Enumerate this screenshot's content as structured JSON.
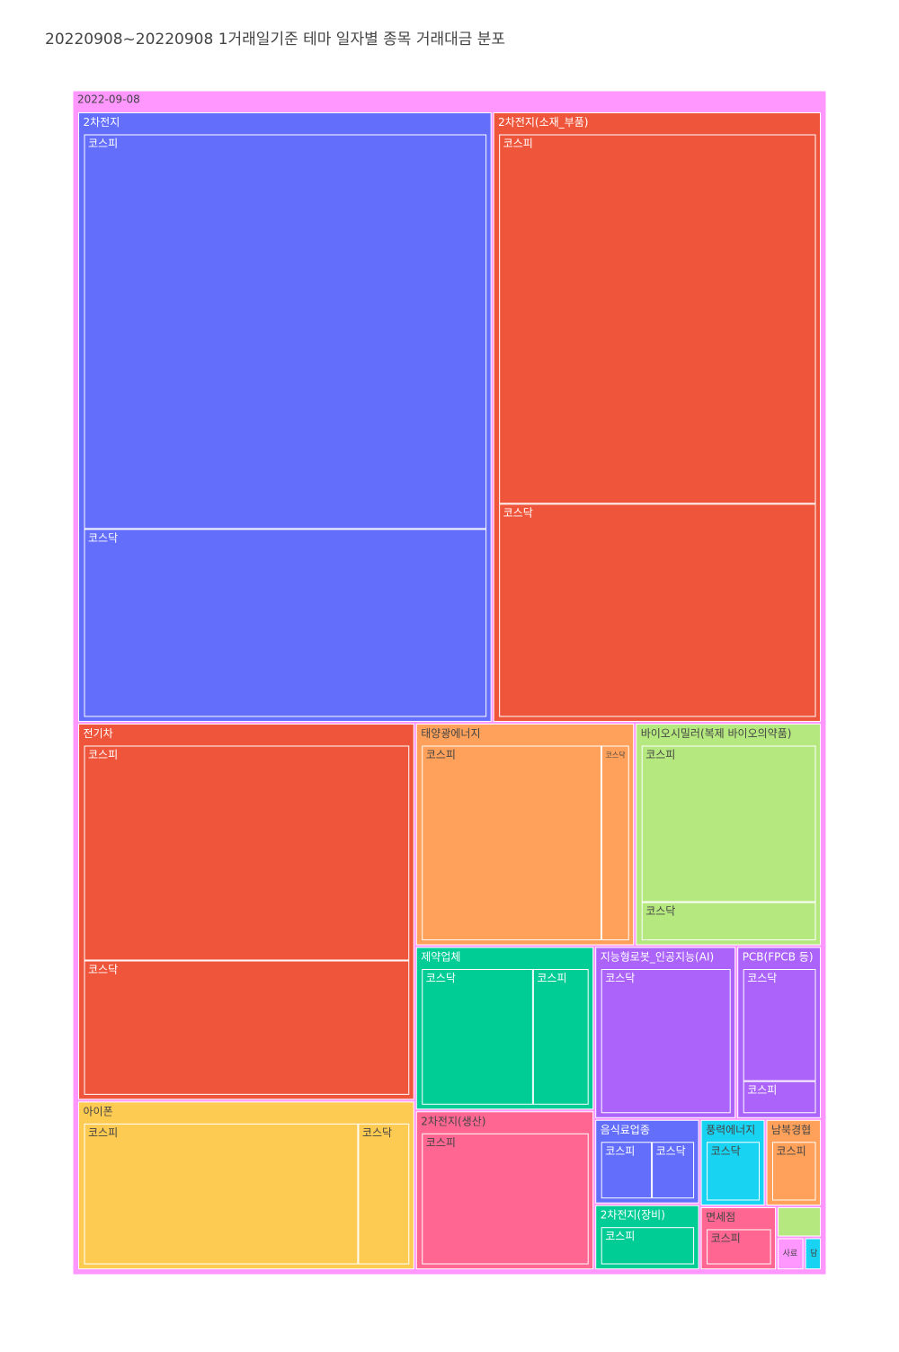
{
  "chart_data": {
    "type": "treemap",
    "title": "20220908~20220908 1거래일기준 테마 일자별 종목 거래대금 분포",
    "root": {
      "label": "2022-09-08",
      "color": "#FF97FF",
      "children": [
        {
          "label": "2차전지",
          "color": "#636EFA",
          "children": [
            {
              "label": "코스피",
              "value": 210
            },
            {
              "label": "코스닥",
              "value": 100
            }
          ]
        },
        {
          "label": "2차전지(소재_부품)",
          "color": "#EF553B",
          "children": [
            {
              "label": "코스피",
              "value": 156
            },
            {
              "label": "코스닥",
              "value": 90
            }
          ]
        },
        {
          "label": "전기차",
          "color": "#EF553B",
          "children": [
            {
              "label": "코스피",
              "value": 96
            },
            {
              "label": "코스닥",
              "value": 60
            }
          ]
        },
        {
          "label": "아이폰",
          "color": "#FECB52",
          "children": [
            {
              "label": "코스피",
              "value": 59
            },
            {
              "label": "코스닥",
              "value": 11
            }
          ]
        },
        {
          "label": "태양광에너지",
          "color": "#FFA15A",
          "children": [
            {
              "label": "코스피",
              "value": 52
            },
            {
              "label": "코스닥",
              "value": 8
            }
          ]
        },
        {
          "label": "바이오시밀러(복제 바이오의약품)",
          "color": "#B6E880",
          "children": [
            {
              "label": "코스피",
              "value": 41
            },
            {
              "label": "코스닥",
              "value": 10
            }
          ]
        },
        {
          "label": "제약업체",
          "color": "#00CC96",
          "children": [
            {
              "label": "코스닥",
              "value": 24
            },
            {
              "label": "코스피",
              "value": 12
            }
          ]
        },
        {
          "label": "2차전지(생산)",
          "color": "#FF6692",
          "children": [
            {
              "label": "코스피",
              "value": 35
            }
          ]
        },
        {
          "label": "지능형로봇_인공지능(AI)",
          "color": "#AB63FA",
          "children": [
            {
              "label": "코스닥",
              "value": 30
            }
          ]
        },
        {
          "label": "PCB(FPCB 등)",
          "color": "#AB63FA",
          "children": [
            {
              "label": "코스닥",
              "value": 14
            },
            {
              "label": "코스피",
              "value": 4
            }
          ]
        },
        {
          "label": "음식료업종",
          "color": "#636EFA",
          "children": [
            {
              "label": "코스피",
              "value": 6
            },
            {
              "label": "코스닥",
              "value": 5
            }
          ]
        },
        {
          "label": "2차전지(장비)",
          "color": "#00CC96",
          "children": [
            {
              "label": "코스피",
              "value": 8.5
            }
          ]
        },
        {
          "label": "풍력에너지",
          "color": "#19D3F3",
          "children": [
            {
              "label": "코스닥",
              "value": 7
            }
          ]
        },
        {
          "label": "남북경협",
          "color": "#FFA15A",
          "children": [
            {
              "label": "코스피",
              "value": 6
            }
          ]
        },
        {
          "label": "면세점",
          "color": "#FF6692",
          "children": [
            {
              "label": "코스피",
              "value": 6
            }
          ]
        },
        {
          "label": null,
          "color": "#B6E880",
          "value": 1.7
        },
        {
          "label": "사료",
          "color": "#FF97FF",
          "value": 1.1
        },
        {
          "label": "담",
          "color": "#19D3F3",
          "value": 0.7
        }
      ]
    }
  }
}
